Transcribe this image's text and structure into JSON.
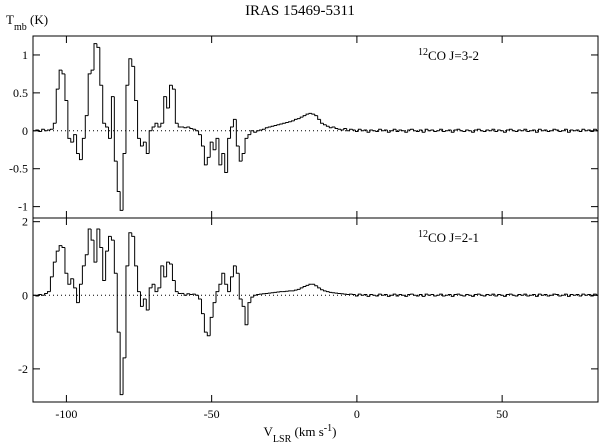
{
  "figure": {
    "title": "IRAS 15469-5311",
    "ylabel": [
      {
        "text": "T"
      },
      {
        "text": "mb",
        "shift": "sub"
      },
      {
        "text": " (K)"
      }
    ],
    "xlabel": [
      {
        "text": "V"
      },
      {
        "text": "LSR",
        "shift": "sub"
      },
      {
        "text": " (km s"
      },
      {
        "text": "-1",
        "shift": "super"
      },
      {
        "text": ")"
      }
    ]
  },
  "chart_data": [
    {
      "type": "line",
      "drawstyle": "steps-mid",
      "color": "#000000",
      "zero_line": true,
      "label": [
        {
          "text": "12",
          "shift": "super"
        },
        {
          "text": "CO J=3-2"
        }
      ],
      "xlim": [
        -111.5,
        83
      ],
      "xticks": [
        -100,
        -50,
        0,
        50
      ],
      "xtick_labels": false,
      "ylim": [
        -1.15,
        1.25
      ],
      "yticks": [
        -1,
        -0.5,
        0,
        0.5,
        1
      ],
      "x": [
        -111,
        -110,
        -109,
        -108,
        -107,
        -106,
        -105,
        -104,
        -103,
        -102,
        -101,
        -100,
        -99,
        -98,
        -97,
        -96,
        -95,
        -94,
        -93,
        -92,
        -91,
        -90,
        -89,
        -88,
        -87,
        -86,
        -85,
        -84,
        -83,
        -82,
        -81,
        -80,
        -79,
        -78,
        -77,
        -76,
        -75,
        -74,
        -73,
        -72,
        -71,
        -70,
        -69,
        -68,
        -67,
        -66,
        -65,
        -64,
        -63,
        -62,
        -61,
        -60,
        -59,
        -58,
        -57,
        -56,
        -55,
        -54,
        -53,
        -52,
        -51,
        -50,
        -49,
        -48,
        -47,
        -46,
        -45,
        -44,
        -43,
        -42,
        -41,
        -40,
        -39,
        -38,
        -37,
        -36,
        -35,
        -34,
        -33,
        -32,
        -31,
        -30,
        -29,
        -28,
        -27,
        -26,
        -25,
        -24,
        -23,
        -22,
        -21,
        -20,
        -19,
        -18,
        -17,
        -16,
        -15,
        -14,
        -13,
        -12,
        -11,
        -10,
        -9,
        -8,
        -7,
        -6,
        -5,
        -4,
        -3,
        -2,
        -1,
        0,
        1,
        2,
        3,
        4,
        5,
        6,
        7,
        8,
        9,
        10,
        11,
        12,
        13,
        14,
        15,
        16,
        17,
        18,
        19,
        20,
        21,
        22,
        23,
        24,
        25,
        26,
        27,
        28,
        29,
        30,
        31,
        32,
        33,
        34,
        35,
        36,
        37,
        38,
        39,
        40,
        41,
        42,
        43,
        44,
        45,
        46,
        47,
        48,
        49,
        50,
        51,
        52,
        53,
        54,
        55,
        56,
        57,
        58,
        59,
        60,
        61,
        62,
        63,
        64,
        65,
        66,
        67,
        68,
        69,
        70,
        71,
        72,
        73,
        74,
        75,
        76,
        77,
        78,
        79,
        80,
        81,
        82,
        83
      ],
      "values": [
        0.0,
        0.01,
        -0.01,
        0.02,
        0.0,
        0.01,
        0.02,
        0.1,
        0.55,
        0.8,
        0.75,
        0.4,
        -0.1,
        -0.15,
        -0.05,
        -0.3,
        -0.38,
        -0.1,
        0.2,
        0.75,
        0.8,
        1.15,
        1.1,
        0.6,
        0.1,
        0.05,
        -0.1,
        0.45,
        -0.4,
        -0.8,
        -1.05,
        -0.3,
        0.6,
        0.95,
        0.85,
        0.4,
        -0.1,
        -0.2,
        -0.15,
        -0.3,
        0.0,
        0.05,
        0.1,
        0.05,
        0.1,
        0.45,
        0.3,
        0.6,
        0.55,
        0.1,
        0.05,
        0.05,
        0.04,
        0.05,
        0.03,
        0.02,
        0.0,
        -0.05,
        -0.2,
        -0.45,
        -0.35,
        -0.15,
        -0.25,
        -0.1,
        -0.45,
        -0.3,
        -0.55,
        -0.1,
        0.05,
        0.15,
        -0.2,
        -0.4,
        -0.3,
        -0.1,
        -0.05,
        0.0,
        -0.02,
        0.0,
        0.01,
        0.02,
        0.04,
        0.05,
        0.06,
        0.07,
        0.08,
        0.09,
        0.1,
        0.11,
        0.12,
        0.13,
        0.15,
        0.16,
        0.18,
        0.2,
        0.22,
        0.23,
        0.22,
        0.2,
        0.15,
        0.1,
        0.08,
        0.06,
        0.04,
        0.05,
        0.03,
        0.02,
        0.01,
        0.03,
        0.0,
        0.02,
        0.01,
        -0.01,
        0.02,
        0.0,
        0.01,
        -0.02,
        0.01,
        0.0,
        -0.01,
        0.02,
        0.0,
        0.01,
        -0.02,
        0.0,
        0.02,
        -0.01,
        0.01,
        0.0,
        -0.02,
        0.01,
        0.02,
        0.0,
        -0.01,
        0.01,
        -0.02,
        0.02,
        0.0,
        0.01,
        -0.01,
        0.0,
        0.02,
        -0.01,
        0.0,
        0.01,
        -0.02,
        0.01,
        0.02,
        0.0,
        -0.01,
        0.01,
        0.0,
        -0.02,
        0.01,
        0.02,
        0.0,
        -0.01,
        0.01,
        0.0,
        0.02,
        -0.01,
        0.01,
        0.0,
        -0.02,
        0.01,
        0.02,
        0.0,
        -0.01,
        0.01,
        0.0,
        0.02,
        -0.01,
        0.0,
        0.01,
        -0.02,
        0.02,
        0.0,
        0.01,
        -0.01,
        0.0,
        0.02,
        0.01,
        -0.01,
        0.0,
        0.02,
        -0.02,
        0.01,
        0.0,
        0.01,
        -0.01,
        0.02,
        0.0,
        0.01,
        -0.01,
        0.02,
        0.0
      ]
    },
    {
      "type": "line",
      "drawstyle": "steps-mid",
      "color": "#000000",
      "zero_line": true,
      "label": [
        {
          "text": "12",
          "shift": "super"
        },
        {
          "text": "CO J=2-1"
        }
      ],
      "xlim": [
        -111.5,
        83
      ],
      "xticks": [
        -100,
        -50,
        0,
        50
      ],
      "xtick_labels": true,
      "ylim": [
        -2.9,
        2.1
      ],
      "yticks": [
        -2,
        0,
        2
      ],
      "x": [
        -111,
        -110,
        -109,
        -108,
        -107,
        -106,
        -105,
        -104,
        -103,
        -102,
        -101,
        -100,
        -99,
        -98,
        -97,
        -96,
        -95,
        -94,
        -93,
        -92,
        -91,
        -90,
        -89,
        -88,
        -87,
        -86,
        -85,
        -84,
        -83,
        -82,
        -81,
        -80,
        -79,
        -78,
        -77,
        -76,
        -75,
        -74,
        -73,
        -72,
        -71,
        -70,
        -69,
        -68,
        -67,
        -66,
        -65,
        -64,
        -63,
        -62,
        -61,
        -60,
        -59,
        -58,
        -57,
        -56,
        -55,
        -54,
        -53,
        -52,
        -51,
        -50,
        -49,
        -48,
        -47,
        -46,
        -45,
        -44,
        -43,
        -42,
        -41,
        -40,
        -39,
        -38,
        -37,
        -36,
        -35,
        -34,
        -33,
        -32,
        -31,
        -30,
        -29,
        -28,
        -27,
        -26,
        -25,
        -24,
        -23,
        -22,
        -21,
        -20,
        -19,
        -18,
        -17,
        -16,
        -15,
        -14,
        -13,
        -12,
        -11,
        -10,
        -9,
        -8,
        -7,
        -6,
        -5,
        -4,
        -3,
        -2,
        -1,
        0,
        1,
        2,
        3,
        4,
        5,
        6,
        7,
        8,
        9,
        10,
        11,
        12,
        13,
        14,
        15,
        16,
        17,
        18,
        19,
        20,
        21,
        22,
        23,
        24,
        25,
        26,
        27,
        28,
        29,
        30,
        31,
        32,
        33,
        34,
        35,
        36,
        37,
        38,
        39,
        40,
        41,
        42,
        43,
        44,
        45,
        46,
        47,
        48,
        49,
        50,
        51,
        52,
        53,
        54,
        55,
        56,
        57,
        58,
        59,
        60,
        61,
        62,
        63,
        64,
        65,
        66,
        67,
        68,
        69,
        70,
        71,
        72,
        73,
        74,
        75,
        76,
        77,
        78,
        79,
        80,
        81,
        82,
        83
      ],
      "values": [
        0.0,
        -0.02,
        0.02,
        0.0,
        0.05,
        0.1,
        0.5,
        0.9,
        1.2,
        1.35,
        1.3,
        0.6,
        0.3,
        0.45,
        0.2,
        -0.2,
        0.3,
        0.8,
        1.1,
        1.8,
        1.5,
        0.9,
        1.8,
        1.3,
        0.4,
        1.2,
        1.6,
        1.5,
        0.6,
        -1.0,
        -2.7,
        -1.7,
        0.8,
        1.7,
        1.6,
        0.8,
        0.1,
        -0.3,
        -0.1,
        -0.4,
        0.2,
        0.3,
        0.1,
        0.2,
        0.8,
        0.5,
        0.9,
        0.85,
        0.4,
        0.1,
        0.05,
        0.05,
        0.0,
        0.04,
        0.02,
        0.03,
        0.0,
        -0.1,
        -0.5,
        -1.0,
        -1.1,
        -0.6,
        -0.2,
        0.1,
        0.3,
        0.6,
        0.3,
        0.1,
        0.5,
        0.8,
        0.6,
        -0.1,
        -0.3,
        -0.8,
        -0.2,
        -0.05,
        0.0,
        0.02,
        0.03,
        0.04,
        0.05,
        0.06,
        0.07,
        0.08,
        0.09,
        0.1,
        0.1,
        0.11,
        0.12,
        0.12,
        0.14,
        0.16,
        0.2,
        0.24,
        0.27,
        0.3,
        0.3,
        0.26,
        0.2,
        0.15,
        0.12,
        0.1,
        0.08,
        0.07,
        0.06,
        0.05,
        0.04,
        0.03,
        0.02,
        0.03,
        0.02,
        -0.02,
        0.03,
        0.0,
        0.02,
        -0.03,
        0.02,
        0.0,
        -0.02,
        0.03,
        0.0,
        0.02,
        -0.03,
        0.0,
        0.03,
        -0.02,
        0.02,
        0.0,
        -0.03,
        0.02,
        0.03,
        0.0,
        -0.02,
        0.02,
        -0.03,
        0.03,
        0.0,
        0.02,
        -0.02,
        0.0,
        0.03,
        -0.02,
        0.0,
        0.02,
        -0.03,
        0.02,
        0.03,
        0.0,
        -0.02,
        0.02,
        0.0,
        -0.03,
        0.02,
        0.03,
        0.0,
        -0.02,
        0.02,
        0.0,
        0.03,
        -0.02,
        0.02,
        0.0,
        -0.03,
        0.02,
        0.03,
        0.0,
        -0.02,
        0.02,
        0.0,
        0.03,
        -0.02,
        0.0,
        0.02,
        -0.03,
        0.03,
        0.0,
        0.02,
        -0.02,
        0.0,
        0.03,
        0.02,
        -0.02,
        0.0,
        0.03,
        -0.03,
        0.02,
        0.0,
        0.02,
        -0.02,
        0.03,
        0.0,
        0.02,
        -0.02,
        0.03,
        0.0
      ]
    }
  ]
}
